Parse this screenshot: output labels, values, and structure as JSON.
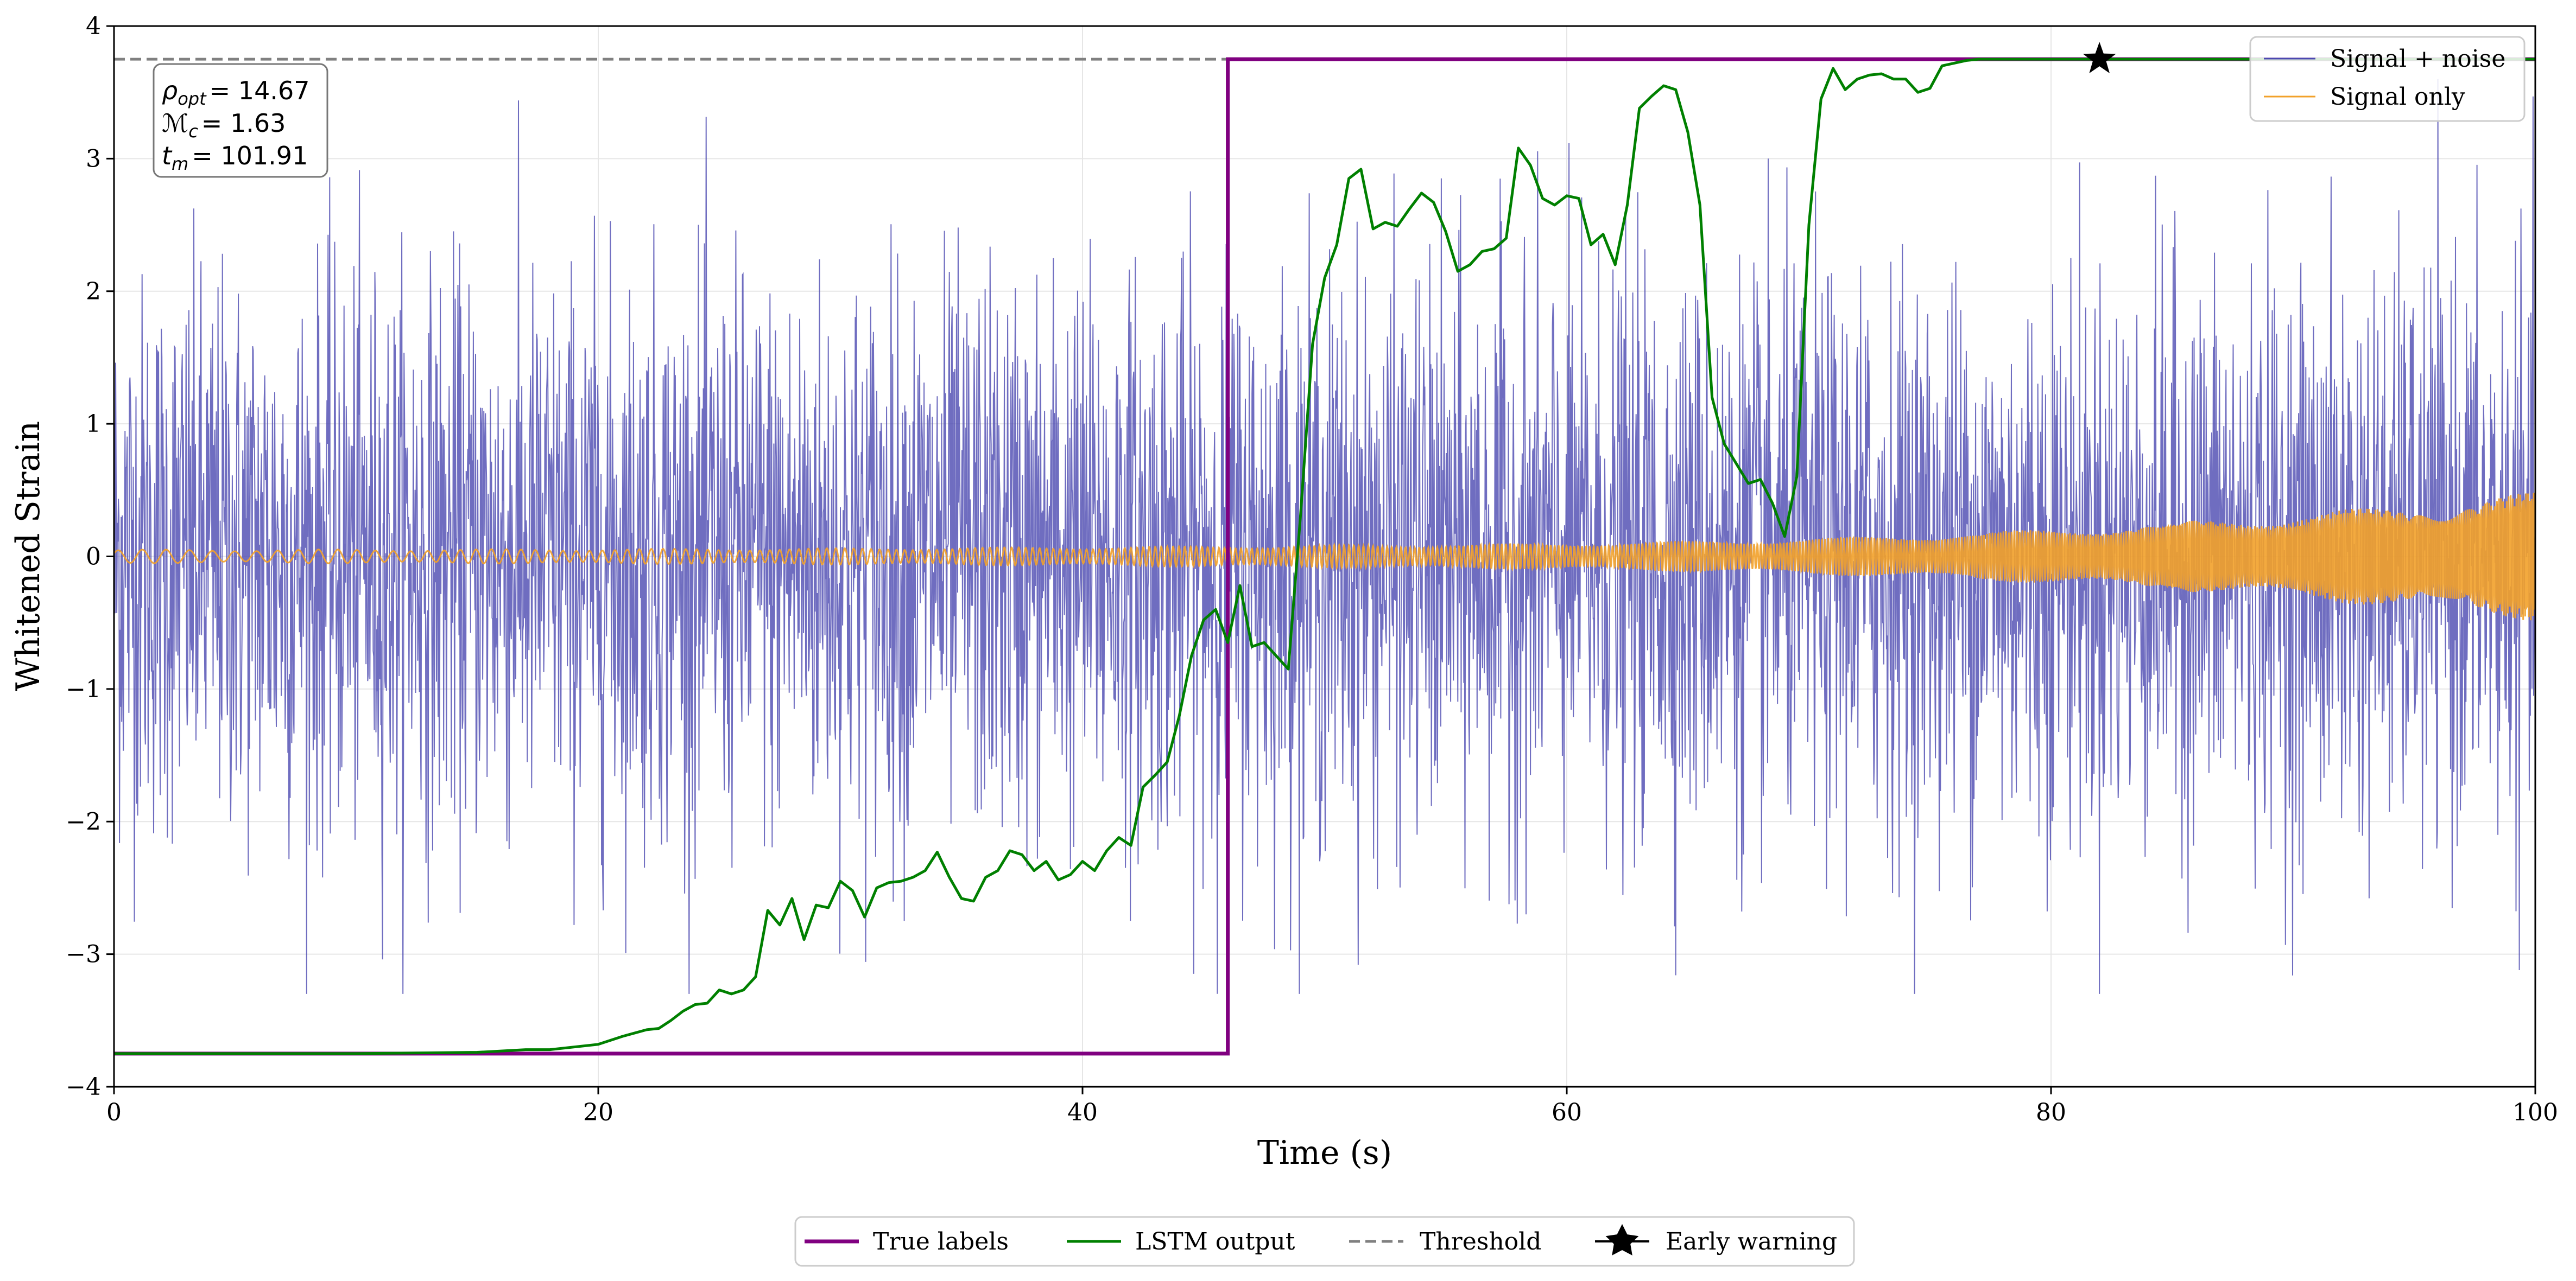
{
  "chart_data": {
    "type": "line",
    "title": "",
    "xlabel": "Time (s)",
    "ylabel": "Whitened Strain",
    "xlim": [
      0,
      100
    ],
    "ylim": [
      -4,
      4
    ],
    "xticks": [
      0,
      20,
      40,
      60,
      80,
      100
    ],
    "xtick_labels": [
      "0",
      "20",
      "40",
      "60",
      "80",
      "100"
    ],
    "yticks": [
      -4,
      -3,
      -2,
      -1,
      0,
      1,
      2,
      3,
      4
    ],
    "ytick_labels": [
      "−4",
      "−3",
      "−2",
      "−1",
      "0",
      "1",
      "2",
      "3",
      "4"
    ],
    "grid": true,
    "threshold": 3.75,
    "label_low": -3.75,
    "label_high": 3.75,
    "merger_time": 46.0,
    "early_warning": {
      "x": 82.0,
      "y": 3.75
    },
    "series": [
      {
        "name": "True labels",
        "color": "#800080",
        "x": [
          0,
          46.0,
          46.0,
          100
        ],
        "y": [
          -3.75,
          -3.75,
          3.75,
          3.75
        ]
      },
      {
        "name": "LSTM output",
        "color": "#008000",
        "x": [
          0,
          10,
          15,
          17,
          18,
          20,
          21,
          22,
          22.5,
          23,
          23.5,
          24,
          24.5,
          25,
          25.5,
          26,
          26.5,
          27,
          27.5,
          28,
          28.5,
          29,
          29.5,
          30,
          30.5,
          31,
          31.5,
          32,
          32.5,
          33,
          33.5,
          34,
          34.5,
          35,
          35.5,
          36,
          36.5,
          37,
          37.5,
          38,
          38.5,
          39,
          39.5,
          40,
          40.5,
          41,
          41.5,
          42,
          42.5,
          43,
          43.5,
          44,
          44.5,
          45,
          45.5,
          46,
          46.5,
          47,
          47.5,
          48,
          48.5,
          49,
          49.5,
          50,
          50.5,
          51,
          51.5,
          52,
          52.5,
          53,
          53.5,
          54,
          54.5,
          55,
          55.5,
          56,
          56.5,
          57,
          57.5,
          58,
          58.5,
          59,
          59.5,
          60,
          60.5,
          61,
          61.5,
          62,
          62.5,
          63,
          63.5,
          64,
          64.5,
          65,
          65.5,
          66,
          66.5,
          67,
          67.5,
          68,
          68.5,
          69,
          69.5,
          70,
          70.5,
          71,
          71.5,
          72,
          72.5,
          73,
          73.5,
          74,
          74.5,
          75,
          75.5,
          76,
          76.5,
          77,
          78,
          80,
          82,
          90,
          100
        ],
        "y": [
          -3.75,
          -3.75,
          -3.74,
          -3.72,
          -3.72,
          -3.68,
          -3.62,
          -3.57,
          -3.56,
          -3.5,
          -3.43,
          -3.38,
          -3.37,
          -3.27,
          -3.3,
          -3.27,
          -3.17,
          -2.67,
          -2.78,
          -2.58,
          -2.89,
          -2.63,
          -2.65,
          -2.45,
          -2.52,
          -2.72,
          -2.5,
          -2.46,
          -2.45,
          -2.42,
          -2.37,
          -2.23,
          -2.42,
          -2.58,
          -2.6,
          -2.42,
          -2.37,
          -2.22,
          -2.25,
          -2.37,
          -2.3,
          -2.44,
          -2.4,
          -2.3,
          -2.37,
          -2.22,
          -2.12,
          -2.18,
          -1.74,
          -1.65,
          -1.55,
          -1.2,
          -0.75,
          -0.48,
          -0.4,
          -0.65,
          -0.22,
          -0.68,
          -0.65,
          -0.75,
          -0.85,
          0.3,
          1.6,
          2.1,
          2.35,
          2.85,
          2.92,
          2.47,
          2.52,
          2.49,
          2.62,
          2.74,
          2.67,
          2.45,
          2.15,
          2.2,
          2.3,
          2.32,
          2.4,
          3.08,
          2.95,
          2.7,
          2.65,
          2.72,
          2.7,
          2.35,
          2.43,
          2.2,
          2.65,
          3.38,
          3.47,
          3.55,
          3.52,
          3.2,
          2.65,
          1.2,
          0.85,
          0.7,
          0.55,
          0.58,
          0.4,
          0.15,
          0.6,
          2.5,
          3.45,
          3.68,
          3.52,
          3.6,
          3.63,
          3.64,
          3.6,
          3.6,
          3.5,
          3.53,
          3.7,
          3.72,
          3.74,
          3.75,
          3.75,
          3.75,
          3.75,
          3.75,
          3.75
        ]
      },
      {
        "name": "Threshold",
        "color": "#808080",
        "x": [
          0,
          100
        ],
        "y": [
          3.75,
          3.75
        ]
      },
      {
        "name": "Signal + noise",
        "color": "#4b48b0",
        "description": "dense noisy strain time series, amplitude roughly -3.3 to 3.6"
      },
      {
        "name": "Signal only",
        "color": "#f2a12a",
        "description": "chirp signal, amplitude grows from ~0.05 to ~0.4 near t=100"
      }
    ],
    "legend_top_right": [
      "Signal + noise",
      "Signal only"
    ],
    "legend_bottom": [
      "True labels",
      "LSTM output",
      "Threshold",
      "Early warning"
    ],
    "annotation": {
      "rho_label": "ρ",
      "rho_sub": "opt",
      "rho_value": "= 14.67",
      "mc_label": "ℳ",
      "mc_sub": "c",
      "mc_value": "= 1.63",
      "tm_label": "t",
      "tm_sub": "m",
      "tm_value": "= 101.91"
    }
  }
}
